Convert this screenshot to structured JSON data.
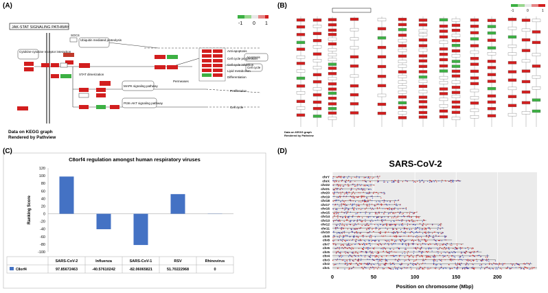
{
  "panels": {
    "a": {
      "label": "(A)",
      "pathway_title": "JAK-STAT SIGNALING PATHWAY",
      "note_line1": "Data on KEGG graph",
      "note_line2": "Rendered by Pathview",
      "legend": [
        "-1",
        "0",
        "1"
      ],
      "nodes": [
        "Cytokine-cytokine receptor interaction",
        "Ubiquitin mediated proteolysis",
        "SOCS",
        "STAT",
        "CIS",
        "Apoptosis",
        "Cell cycle",
        "MAPK signaling pathway",
        "PI3K-AKT signaling pathway",
        "Anti-apoptosis",
        "Cell cycle progression",
        "Cell cycle inhibition",
        "Lipid metabolism",
        "Differentiation",
        "Proliferation",
        "STAT dimerization",
        "Permeases",
        "PI3K",
        "Grb2",
        "SOS",
        "Ras",
        "Raf",
        "Pim1"
      ]
    },
    "b": {
      "label": "(B)",
      "note_line1": "Data on KEGG graph",
      "note_line2": "Rendered by Pathview",
      "legend": [
        "-1",
        "0",
        "1"
      ]
    },
    "c": {
      "label": "(C)"
    },
    "d": {
      "label": "(D)"
    }
  },
  "chart_data": [
    {
      "type": "bar",
      "title": "C8orf4 regulation amongst human respiratory viruses",
      "ylabel": "Ranking Score",
      "categories": [
        "SARS-CoV-2",
        "Influenza",
        "SARS-CoV-1",
        "RSV",
        "Rhinovirus"
      ],
      "series": [
        {
          "name": "C8orf4",
          "values": [
            97.85672463,
            -40.57610242,
            -82.06065821,
            51.70222968,
            0
          ]
        }
      ],
      "table_values": [
        "97.85672463",
        "-40.57610242",
        "-82.06065821",
        "51.70222968",
        "0"
      ],
      "yticks": [
        "120",
        "100",
        "80",
        "60",
        "40",
        "20",
        "0",
        "-20",
        "-40",
        "-60",
        "-80",
        "-100"
      ],
      "ylim": [
        -100,
        120
      ],
      "bar_color": "#4472c4",
      "legend": "table"
    },
    {
      "type": "scatter",
      "title": "SARS-CoV-2",
      "xlabel": "Position on chromosome (Mbp)",
      "xticks": [
        "0",
        "50",
        "100",
        "150",
        "200"
      ],
      "xlim": [
        0,
        248
      ],
      "categories": [
        "chrY",
        "chrX",
        "chr22",
        "chr21",
        "chr20",
        "chr19",
        "chr18",
        "chr17",
        "chr16",
        "chr15",
        "chr14",
        "chr13",
        "chr12",
        "chr11",
        "chr10",
        "chr9",
        "chr8",
        "chr7",
        "chr6",
        "chr5",
        "chr4",
        "chr3",
        "chr2",
        "chr1"
      ],
      "chromosome_lengths_mbp": [
        57,
        156,
        51,
        47,
        64,
        59,
        80,
        83,
        90,
        102,
        107,
        114,
        133,
        135,
        134,
        138,
        145,
        159,
        171,
        181,
        190,
        198,
        242,
        248
      ],
      "grid": true,
      "marker_colors": [
        "#cc2222",
        "#3344bb"
      ]
    }
  ]
}
